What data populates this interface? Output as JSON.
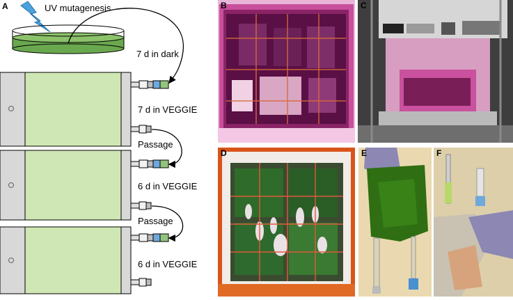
{
  "panels": {
    "a": {
      "label": "A",
      "uv": "UV mutagenesis",
      "steps": [
        "7 d in dark",
        "7 d in VEGGIE",
        "Passage",
        "6 d in VEGGIE",
        "Passage",
        "6 d in VEGGIE"
      ]
    },
    "b": {
      "label": "B"
    },
    "c": {
      "label": "C"
    },
    "d": {
      "label": "D"
    },
    "e": {
      "label": "E"
    },
    "f": {
      "label": "F"
    }
  },
  "colors": {
    "culture_green": "#cfe7b4",
    "dish_green": "#6aa84f",
    "bag_gray": "#d8d8d8",
    "lightning_blue": "#4aa3df",
    "magenta_light": "#d7349a",
    "orange_frame": "#d9541a"
  }
}
